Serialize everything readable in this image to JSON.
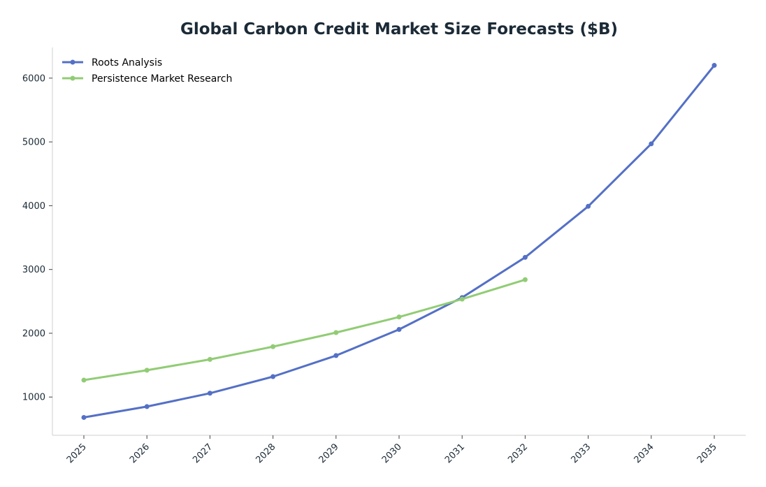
{
  "chart_data": {
    "type": "line",
    "title": "Global Carbon Credit Market Size Forecasts ($B)",
    "xlabel": "",
    "ylabel": "",
    "x": [
      "2025",
      "2026",
      "2027",
      "2028",
      "2029",
      "2030",
      "2031",
      "2032",
      "2033",
      "2034",
      "2035"
    ],
    "ylim": [
      400,
      6480
    ],
    "yticks": [
      1000,
      2000,
      3000,
      4000,
      5000,
      6000
    ],
    "grid": false,
    "legend_position": "top-left",
    "series": [
      {
        "name": "Roots Analysis",
        "color": "#5470c6",
        "values": [
          680,
          850,
          1060,
          1320,
          1650,
          2060,
          2560,
          3190,
          3990,
          4970,
          6200
        ]
      },
      {
        "name": "Persistence Market Research",
        "color": "#91cc75",
        "values": [
          1265,
          1420,
          1590,
          1790,
          2010,
          2255,
          2535,
          2840,
          null,
          null,
          null
        ]
      }
    ]
  }
}
